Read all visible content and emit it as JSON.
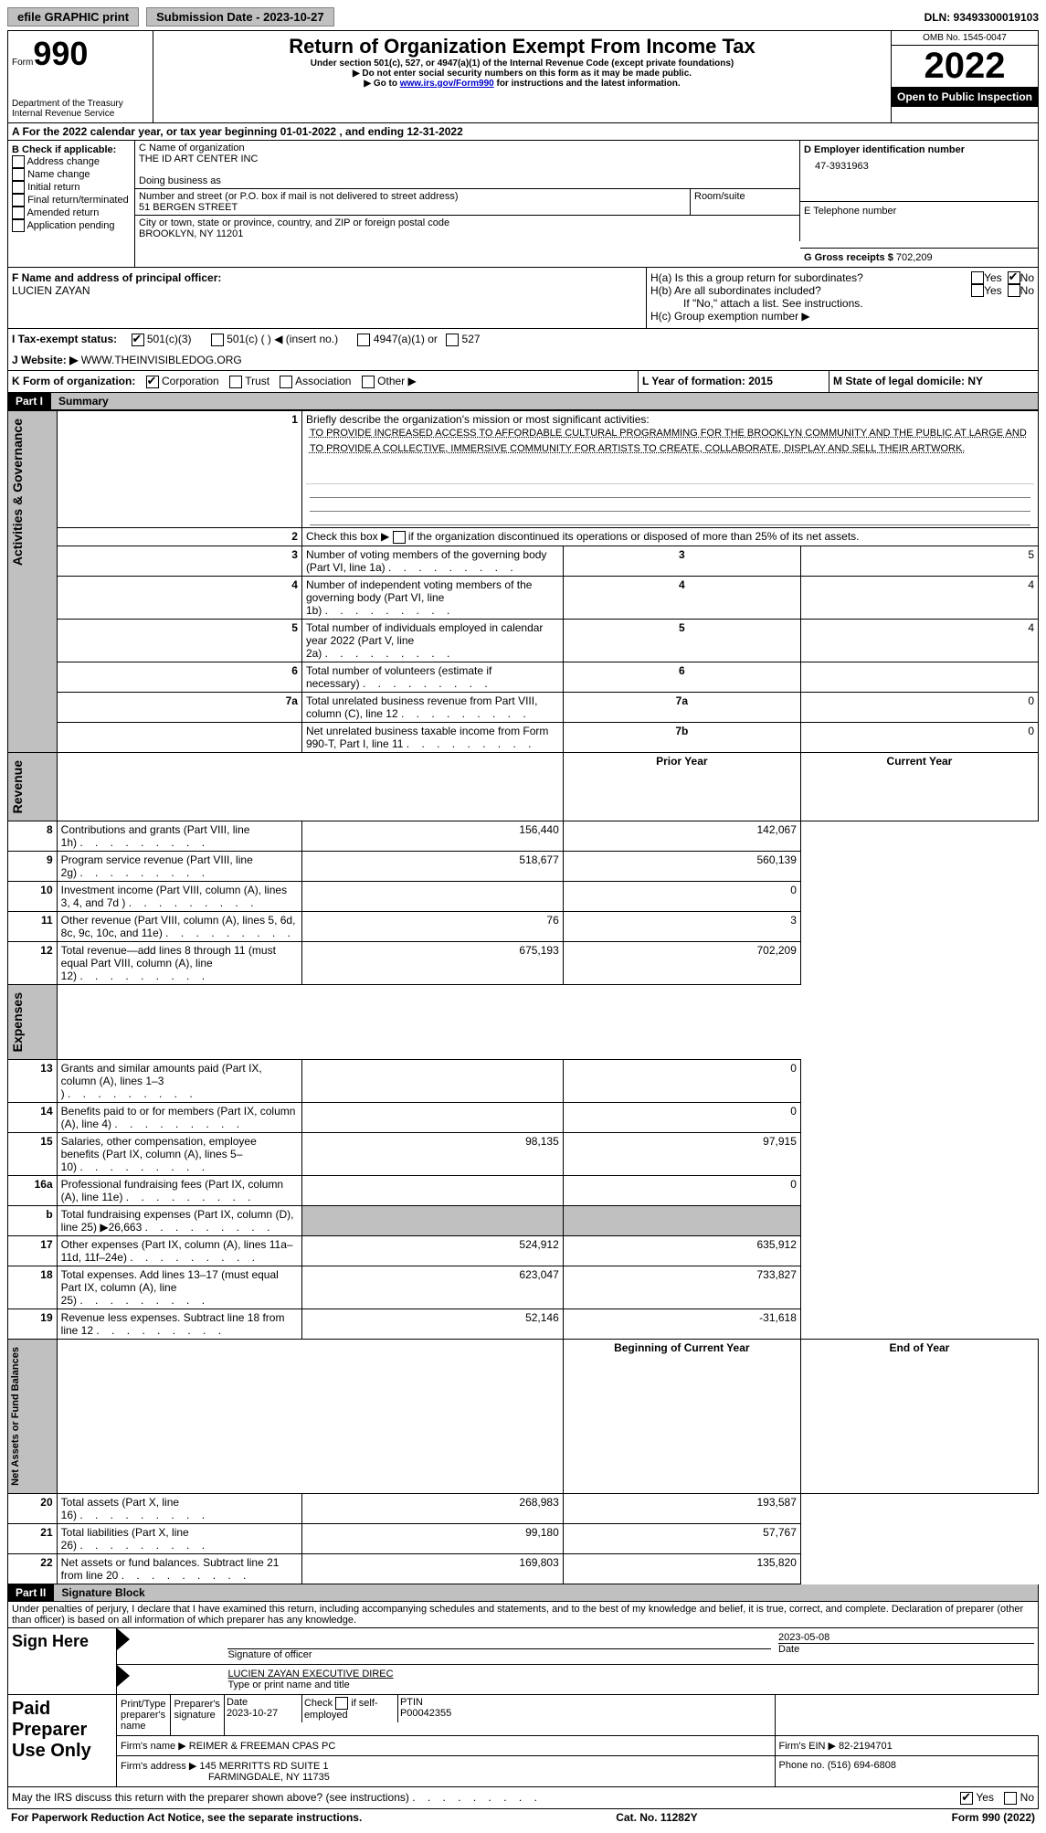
{
  "topbar": {
    "efile": "efile GRAPHIC print",
    "sub_date_label": "Submission Date - 2023-10-27",
    "dln_label": "DLN: 93493300019103"
  },
  "header": {
    "form_label": "Form",
    "form_num": "990",
    "dept": "Department of the Treasury",
    "irs": "Internal Revenue Service",
    "title": "Return of Organization Exempt From Income Tax",
    "subtitle": "Under section 501(c), 527, or 4947(a)(1) of the Internal Revenue Code (except private foundations)",
    "note1": "▶ Do not enter social security numbers on this form as it may be made public.",
    "note2_pre": "▶ Go to ",
    "note2_link": "www.irs.gov/Form990",
    "note2_post": " for instructions and the latest information.",
    "omb": "OMB No. 1545-0047",
    "year": "2022",
    "open": "Open to Public Inspection"
  },
  "rowA": "A For the 2022 calendar year, or tax year beginning 01-01-2022    , and ending 12-31-2022",
  "colB": {
    "label": "B Check if applicable:",
    "items": [
      "Address change",
      "Name change",
      "Initial return",
      "Final return/terminated",
      "Amended return",
      "Application pending"
    ]
  },
  "colC": {
    "name_label": "C Name of organization",
    "name": "THE ID ART CENTER INC",
    "dba": "Doing business as",
    "addr_label": "Number and street (or P.O. box if mail is not delivered to street address)",
    "room": "Room/suite",
    "addr": "51 BERGEN STREET",
    "city_label": "City or town, state or province, country, and ZIP or foreign postal code",
    "city": "BROOKLYN, NY  11201"
  },
  "colD": {
    "ein_label": "D Employer identification number",
    "ein": "47-3931963",
    "phone_label": "E Telephone number",
    "gross_label": "G Gross receipts $",
    "gross": "702,209"
  },
  "rowF": {
    "label": "F  Name and address of principal officer:",
    "name": "LUCIEN ZAYAN"
  },
  "rowH": {
    "ha": "H(a)  Is this a group return for subordinates?",
    "hb": "H(b)  Are all subordinates included?",
    "note": "If \"No,\" attach a list. See instructions.",
    "hc": "H(c)  Group exemption number ▶",
    "yes": "Yes",
    "no": "No"
  },
  "rowI": {
    "label": "I    Tax-exempt status:",
    "opts": [
      "501(c)(3)",
      "501(c) (   ) ◀ (insert no.)",
      "4947(a)(1) or",
      "527"
    ]
  },
  "rowJ": {
    "label": "J    Website: ▶",
    "value": "  WWW.THEINVISIBLEDOG.ORG"
  },
  "rowK": {
    "label": "K Form of organization:",
    "opts": [
      "Corporation",
      "Trust",
      "Association",
      "Other ▶"
    ]
  },
  "rowL": {
    "label": "L Year of formation: 2015"
  },
  "rowM": {
    "label": "M State of legal domicile: NY"
  },
  "part1": {
    "header": "Part I",
    "title": "Summary",
    "vert1": "Activities & Governance",
    "vert2": "Revenue",
    "vert3": "Expenses",
    "vert4": "Net Assets or Fund Balances",
    "line1_label": "Briefly describe the organization's mission or most significant activities:",
    "mission": "TO PROVIDE INCREASED ACCESS TO AFFORDABLE CULTURAL PROGRAMMING FOR THE BROOKLYN COMMUNITY AND THE PUBLIC AT LARGE AND TO PROVIDE A COLLECTIVE, IMMERSIVE COMMUNITY FOR ARTISTS TO CREATE, COLLABORATE, DISPLAY AND SELL THEIR ARTWORK.",
    "line2": "Check this box ▶        if the organization discontinued its operations or disposed of more than 25% of its net assets.",
    "rows_gov": [
      {
        "n": "3",
        "label": "Number of voting members of the governing body (Part VI, line 1a)",
        "box": "3",
        "val": "5"
      },
      {
        "n": "4",
        "label": "Number of independent voting members of the governing body (Part VI, line 1b)",
        "box": "4",
        "val": "4"
      },
      {
        "n": "5",
        "label": "Total number of individuals employed in calendar year 2022 (Part V, line 2a)",
        "box": "5",
        "val": "4"
      },
      {
        "n": "6",
        "label": "Total number of volunteers (estimate if necessary)",
        "box": "6",
        "val": ""
      },
      {
        "n": "7a",
        "label": "Total unrelated business revenue from Part VIII, column (C), line 12",
        "box": "7a",
        "val": "0"
      },
      {
        "n": "",
        "label": "Net unrelated business taxable income from Form 990-T, Part I, line 11",
        "box": "7b",
        "val": "0"
      }
    ],
    "b_label": "b",
    "prior": "Prior Year",
    "current": "Current Year",
    "rows_rev": [
      {
        "n": "8",
        "label": "Contributions and grants (Part VIII, line 1h)",
        "py": "156,440",
        "cy": "142,067"
      },
      {
        "n": "9",
        "label": "Program service revenue (Part VIII, line 2g)",
        "py": "518,677",
        "cy": "560,139"
      },
      {
        "n": "10",
        "label": "Investment income (Part VIII, column (A), lines 3, 4, and 7d )",
        "py": "",
        "cy": "0"
      },
      {
        "n": "11",
        "label": "Other revenue (Part VIII, column (A), lines 5, 6d, 8c, 9c, 10c, and 11e)",
        "py": "76",
        "cy": "3"
      },
      {
        "n": "12",
        "label": "Total revenue—add lines 8 through 11 (must equal Part VIII, column (A), line 12)",
        "py": "675,193",
        "cy": "702,209"
      }
    ],
    "rows_exp": [
      {
        "n": "13",
        "label": "Grants and similar amounts paid (Part IX, column (A), lines 1–3 )",
        "py": "",
        "cy": "0"
      },
      {
        "n": "14",
        "label": "Benefits paid to or for members (Part IX, column (A), line 4)",
        "py": "",
        "cy": "0"
      },
      {
        "n": "15",
        "label": "Salaries, other compensation, employee benefits (Part IX, column (A), lines 5–10)",
        "py": "98,135",
        "cy": "97,915"
      },
      {
        "n": "16a",
        "label": "Professional fundraising fees (Part IX, column (A), line 11e)",
        "py": "",
        "cy": "0"
      },
      {
        "n": "b",
        "label": "Total fundraising expenses (Part IX, column (D), line 25) ▶26,663",
        "py": "gray",
        "cy": "gray"
      },
      {
        "n": "17",
        "label": "Other expenses (Part IX, column (A), lines 11a–11d, 11f–24e)",
        "py": "524,912",
        "cy": "635,912"
      },
      {
        "n": "18",
        "label": "Total expenses. Add lines 13–17 (must equal Part IX, column (A), line 25)",
        "py": "623,047",
        "cy": "733,827"
      },
      {
        "n": "19",
        "label": "Revenue less expenses. Subtract line 18 from line 12",
        "py": "52,146",
        "cy": "-31,618"
      }
    ],
    "beg": "Beginning of Current Year",
    "end": "End of Year",
    "rows_net": [
      {
        "n": "20",
        "label": "Total assets (Part X, line 16)",
        "py": "268,983",
        "cy": "193,587"
      },
      {
        "n": "21",
        "label": "Total liabilities (Part X, line 26)",
        "py": "99,180",
        "cy": "57,767"
      },
      {
        "n": "22",
        "label": "Net assets or fund balances. Subtract line 21 from line 20",
        "py": "169,803",
        "cy": "135,820"
      }
    ]
  },
  "part2": {
    "header": "Part II",
    "title": "Signature Block",
    "decl": "Under penalties of perjury, I declare that I have examined this return, including accompanying schedules and statements, and to the best of my knowledge and belief, it is true, correct, and complete. Declaration of preparer (other than officer) is based on all information of which preparer has any knowledge.",
    "sign_here": "Sign Here",
    "sig_officer": "Signature of officer",
    "sig_date": "2023-05-08",
    "date_label": "Date",
    "name_title": "LUCIEN ZAYAN  EXECUTIVE DIREC",
    "type_name": "Type or print name and title",
    "paid": "Paid Preparer Use Only",
    "prep_name_label": "Print/Type preparer's name",
    "prep_sig_label": "Preparer's signature",
    "prep_date": "Date\n2023-10-27",
    "self_emp": "Check         if self-employed",
    "ptin_label": "PTIN",
    "ptin": "P00042355",
    "firm_name_label": "Firm's name     ▶",
    "firm_name": "REIMER & FREEMAN CPAS PC",
    "firm_ein": "Firm's EIN ▶ 82-2194701",
    "firm_addr_label": "Firm's address ▶",
    "firm_addr": "145 MERRITTS RD SUITE 1",
    "firm_city": "FARMINGDALE, NY  11735",
    "phone": "Phone no. (516) 694-6808",
    "discuss": "May the IRS discuss this return with the preparer shown above? (see instructions)",
    "yes": "Yes",
    "no": "No"
  },
  "footer": {
    "left": "For Paperwork Reduction Act Notice, see the separate instructions.",
    "mid": "Cat. No. 11282Y",
    "right": "Form 990 (2022)"
  }
}
